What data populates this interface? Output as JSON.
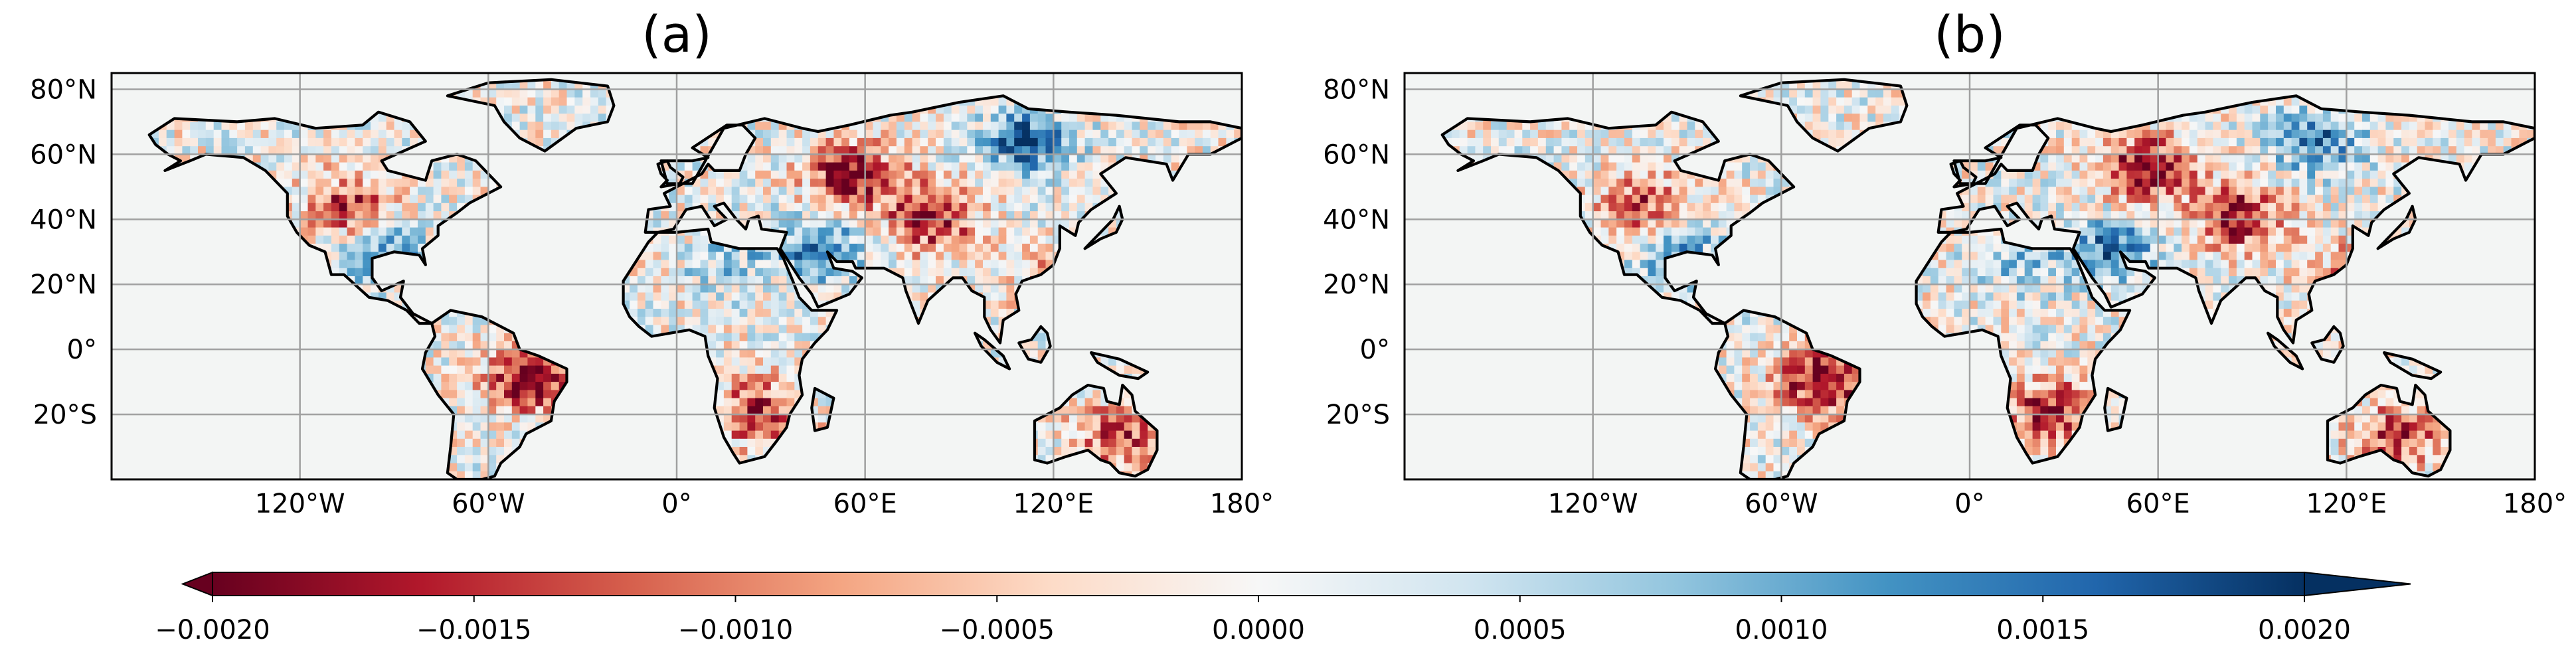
{
  "chart_data": {
    "type": "heatmap",
    "panels": [
      {
        "title": "(a)",
        "projection": "PlateCarree",
        "lon_range": [
          -180,
          180
        ],
        "lat_range": [
          -40,
          85
        ],
        "x_ticks": [
          -120,
          -60,
          0,
          60,
          120,
          180
        ],
        "x_tick_labels": [
          "120°W",
          "60°W",
          "0°",
          "60°E",
          "120°E",
          "180°"
        ],
        "y_ticks": [
          80,
          60,
          40,
          20,
          0,
          -20
        ],
        "y_tick_labels": [
          "80°N",
          "60°N",
          "40°N",
          "20°N",
          "0°",
          "20°S"
        ],
        "grid": true,
        "anomaly_regions": [
          {
            "lon": 55,
            "lat": 55,
            "value": -0.002
          },
          {
            "lon": 80,
            "lat": 42,
            "value": -0.0018
          },
          {
            "lon": -105,
            "lat": 45,
            "value": -0.0015
          },
          {
            "lon": -48,
            "lat": -8,
            "value": -0.002
          },
          {
            "lon": 25,
            "lat": -18,
            "value": -0.0016
          },
          {
            "lon": 140,
            "lat": -25,
            "value": -0.0014
          },
          {
            "lon": 110,
            "lat": 65,
            "value": 0.0016
          },
          {
            "lon": 45,
            "lat": 32,
            "value": 0.0014
          },
          {
            "lon": -95,
            "lat": 32,
            "value": 0.0012
          },
          {
            "lon": 120,
            "lat": 25,
            "value": -0.0008
          },
          {
            "lon": 15,
            "lat": 28,
            "value": 0.0006
          }
        ]
      },
      {
        "title": "(b)",
        "projection": "PlateCarree",
        "lon_range": [
          -180,
          180
        ],
        "lat_range": [
          -40,
          85
        ],
        "x_ticks": [
          -120,
          -60,
          0,
          60,
          120,
          180
        ],
        "x_tick_labels": [
          "120°W",
          "60°W",
          "0°",
          "60°E",
          "120°E",
          "180°"
        ],
        "y_ticks": [
          80,
          60,
          40,
          20,
          0,
          -20
        ],
        "y_tick_labels": [
          "80°N",
          "60°N",
          "40°N",
          "20°N",
          "0°",
          "20°S"
        ],
        "grid": true,
        "anomaly_regions": [
          {
            "lon": 55,
            "lat": 57,
            "value": -0.002
          },
          {
            "lon": 85,
            "lat": 42,
            "value": -0.0018
          },
          {
            "lon": -105,
            "lat": 45,
            "value": -0.0014
          },
          {
            "lon": -48,
            "lat": -8,
            "value": -0.002
          },
          {
            "lon": 25,
            "lat": -18,
            "value": -0.0017
          },
          {
            "lon": 135,
            "lat": -25,
            "value": -0.0014
          },
          {
            "lon": 110,
            "lat": 65,
            "value": 0.0014
          },
          {
            "lon": 45,
            "lat": 32,
            "value": 0.0015
          },
          {
            "lon": -95,
            "lat": 32,
            "value": 0.0012
          },
          {
            "lon": 120,
            "lat": 25,
            "value": -0.0008
          },
          {
            "lon": 15,
            "lat": 28,
            "value": 0.0006
          }
        ]
      }
    ],
    "colorbar": {
      "cmap": "RdBu",
      "vmin": -0.002,
      "vmax": 0.002,
      "extend": "both",
      "ticks": [
        -0.002,
        -0.0015,
        -0.001,
        -0.0005,
        0,
        0.0005,
        0.001,
        0.0015,
        0.002
      ],
      "tick_labels": [
        "−0.0020",
        "−0.0015",
        "−0.0010",
        "−0.0005",
        "0.0000",
        "0.0005",
        "0.0010",
        "0.0015",
        "0.0020"
      ],
      "stops": [
        "#67001f",
        "#b2182b",
        "#d6604d",
        "#f4a582",
        "#fddbc7",
        "#f7f7f7",
        "#d1e5f0",
        "#92c5de",
        "#4393c3",
        "#2166ac",
        "#053061"
      ]
    },
    "ocean_color": "#f3f5f4",
    "land_color": "#f7f4f0"
  }
}
